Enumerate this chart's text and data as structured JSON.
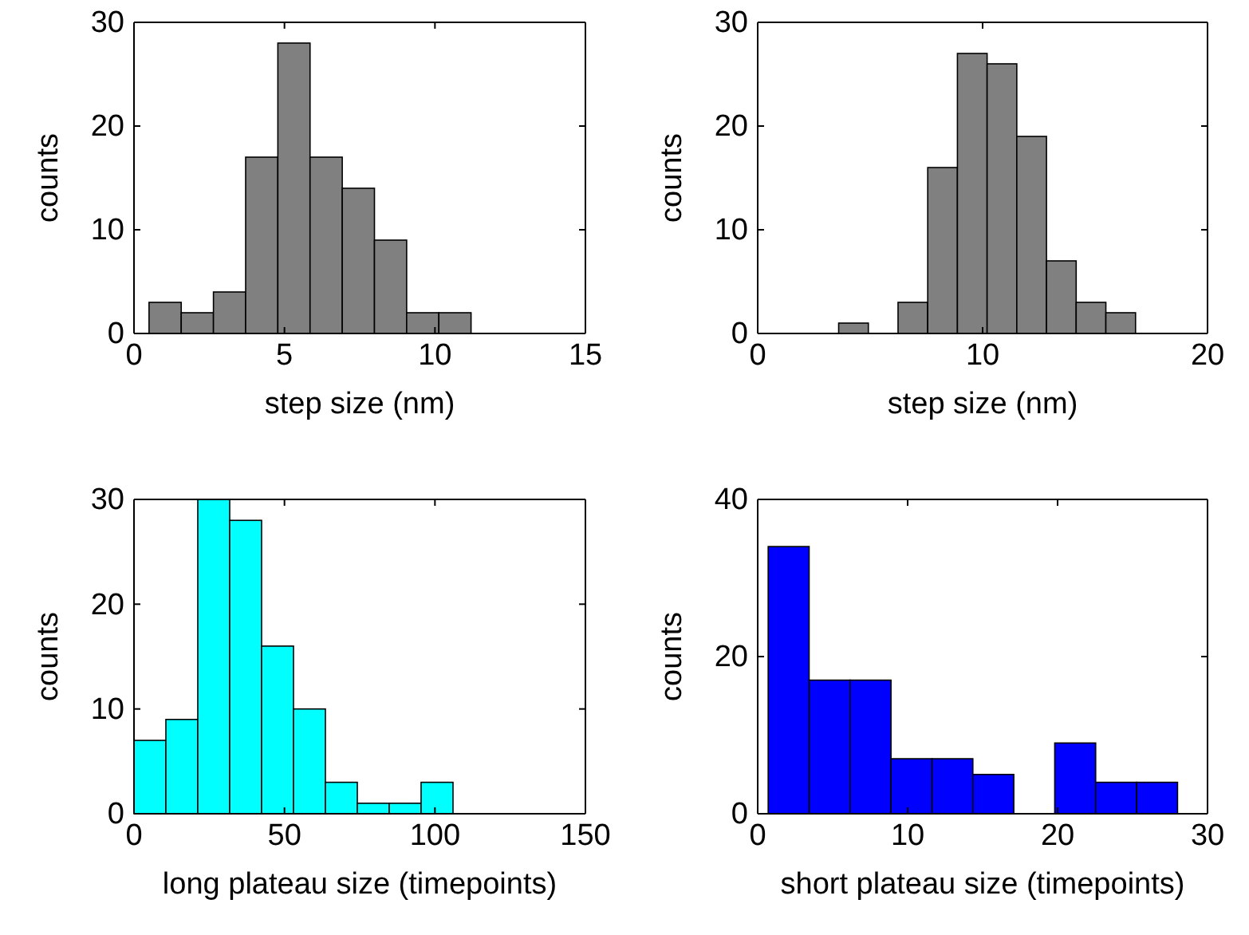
{
  "chart_data": [
    {
      "type": "histogram",
      "xlabel": "step size (nm)",
      "ylabel": "counts",
      "color": "#808080",
      "bins": [
        0.5,
        1.57,
        2.64,
        3.71,
        4.78,
        5.85,
        6.92,
        7.99,
        9.06,
        10.13,
        11.2
      ],
      "values": [
        3,
        2,
        4,
        17,
        28,
        17,
        14,
        9,
        2,
        2
      ],
      "xlim": [
        0,
        15
      ],
      "xticks": [
        0,
        5,
        10,
        15
      ],
      "ylim": [
        0,
        30
      ],
      "yticks": [
        0,
        10,
        20,
        30
      ]
    },
    {
      "type": "histogram",
      "xlabel": "step size (nm)",
      "ylabel": "counts",
      "color": "#808080",
      "bins": [
        3.6,
        4.92,
        6.24,
        7.56,
        8.88,
        10.2,
        11.52,
        12.84,
        14.16,
        15.48,
        16.8
      ],
      "values": [
        1,
        0,
        3,
        16,
        27,
        26,
        19,
        7,
        3,
        2
      ],
      "xlim": [
        0,
        20
      ],
      "xticks": [
        0,
        10,
        20
      ],
      "ylim": [
        0,
        30
      ],
      "yticks": [
        0,
        10,
        20,
        30
      ]
    },
    {
      "type": "histogram",
      "xlabel": "long plateau size (timepoints)",
      "ylabel": "counts",
      "color": "#00ffff",
      "bins": [
        0,
        10.6,
        21.2,
        31.8,
        42.4,
        53,
        63.6,
        74.2,
        84.8,
        95.4,
        106
      ],
      "values": [
        7,
        9,
        30,
        28,
        16,
        10,
        3,
        1,
        1,
        3
      ],
      "xlim": [
        0,
        150
      ],
      "xticks": [
        0,
        50,
        100,
        150
      ],
      "ylim": [
        0,
        30
      ],
      "yticks": [
        0,
        10,
        20,
        30
      ]
    },
    {
      "type": "histogram",
      "xlabel": "short plateau size (timepoints)",
      "ylabel": "counts",
      "color": "#0000ff",
      "bins": [
        0.7,
        3.43,
        6.16,
        8.89,
        11.62,
        14.35,
        17.08,
        19.81,
        22.54,
        25.27,
        28.0
      ],
      "values": [
        34,
        17,
        17,
        7,
        7,
        5,
        0,
        9,
        4,
        4
      ],
      "xlim": [
        0,
        30
      ],
      "xticks": [
        0,
        10,
        20,
        30
      ],
      "ylim": [
        0,
        40
      ],
      "yticks": [
        0,
        20,
        40
      ]
    }
  ]
}
